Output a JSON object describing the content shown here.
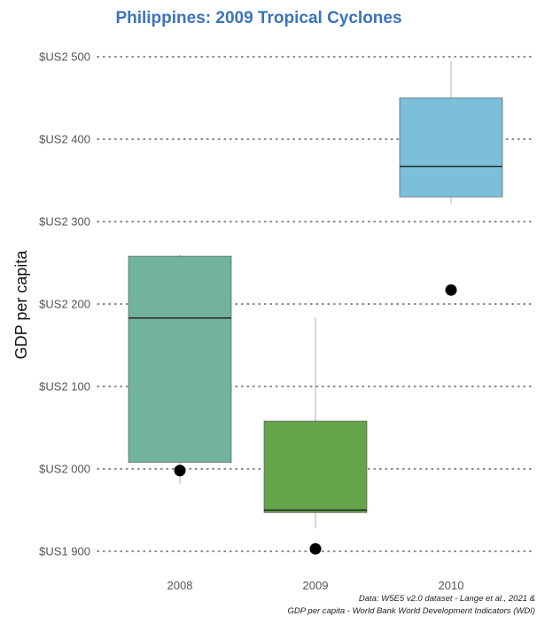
{
  "chart_data": {
    "type": "boxplot",
    "title": "Philippines: 2009 Tropical Cyclones",
    "xlabel": "",
    "ylabel": "GDP per capita",
    "ylim": [
      1890,
      2515
    ],
    "y_ticks": [
      {
        "value": 1900,
        "label": "$US1 900"
      },
      {
        "value": 2000,
        "label": "$US2 000"
      },
      {
        "value": 2100,
        "label": "$US2 100"
      },
      {
        "value": 2200,
        "label": "$US2 200"
      },
      {
        "value": 2300,
        "label": "$US2 300"
      },
      {
        "value": 2400,
        "label": "$US2 400"
      },
      {
        "value": 2500,
        "label": "$US2 500"
      }
    ],
    "categories": [
      "2008",
      "2009",
      "2010"
    ],
    "boxes": [
      {
        "category": "2008",
        "whisker_low": 1982,
        "q1": 2008,
        "median": 2183,
        "q3": 2258,
        "whisker_high": 2260,
        "point": 1998,
        "color": "#72b39c"
      },
      {
        "category": "2009",
        "whisker_low": 1928,
        "q1": 1947,
        "median": 1950,
        "q3": 2058,
        "whisker_high": 2183,
        "point": 1903,
        "color": "#64a54b"
      },
      {
        "category": "2010",
        "whisker_low": 2322,
        "q1": 2330,
        "median": 2367,
        "q3": 2450,
        "whisker_high": 2495,
        "point": 2217,
        "color": "#7bbfda"
      }
    ],
    "grid": "dotted horizontal",
    "caption_lines": [
      "Data: W5E5 v2.0 dataset - Lange et al., 2021 &",
      "GDP per capita - World Bank World Development Indicators (WDI)"
    ],
    "title_color": "#3b73b9"
  }
}
